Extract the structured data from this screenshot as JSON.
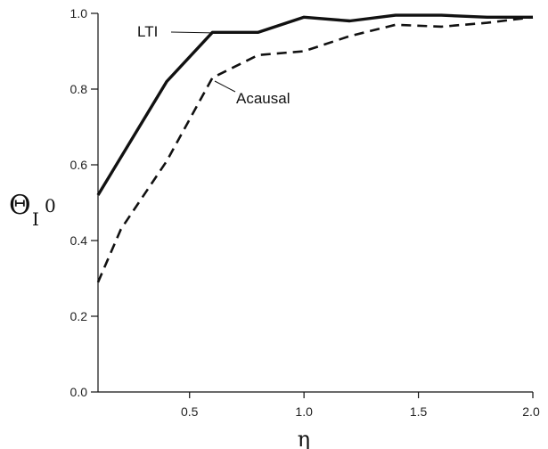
{
  "chart_data": {
    "type": "line",
    "xlabel": "η",
    "ylabel": {
      "main": "Θ",
      "sub": "I",
      "sup": "0"
    },
    "xlim": [
      0.1,
      2.0
    ],
    "ylim": [
      0.0,
      1.0
    ],
    "xticks": [
      {
        "value": 0.5,
        "label": "0.5"
      },
      {
        "value": 1.0,
        "label": "1.0"
      },
      {
        "value": 1.5,
        "label": "1.5"
      },
      {
        "value": 2.0,
        "label": "2.0"
      }
    ],
    "yticks": [
      {
        "value": 0.0,
        "label": "0.0"
      },
      {
        "value": 0.2,
        "label": "0.2"
      },
      {
        "value": 0.4,
        "label": "0.4"
      },
      {
        "value": 0.6,
        "label": "0.6"
      },
      {
        "value": 0.8,
        "label": "0.8"
      },
      {
        "value": 1.0,
        "label": "1.0"
      }
    ],
    "grid": false,
    "series": [
      {
        "name": "LTI",
        "style": "solid",
        "color": "#111111",
        "x": [
          0.1,
          0.4,
          0.6,
          0.8,
          1.0,
          1.2,
          1.4,
          1.6,
          1.8,
          2.0
        ],
        "y": [
          0.52,
          0.82,
          0.95,
          0.95,
          0.99,
          0.98,
          0.995,
          0.995,
          0.99,
          0.99
        ]
      },
      {
        "name": "Acausal",
        "style": "dashed",
        "color": "#111111",
        "x": [
          0.1,
          0.2,
          0.4,
          0.6,
          0.8,
          1.0,
          1.2,
          1.4,
          1.6,
          1.8,
          2.0
        ],
        "y": [
          0.29,
          0.43,
          0.61,
          0.83,
          0.89,
          0.9,
          0.94,
          0.97,
          0.965,
          0.975,
          0.99
        ]
      }
    ]
  }
}
